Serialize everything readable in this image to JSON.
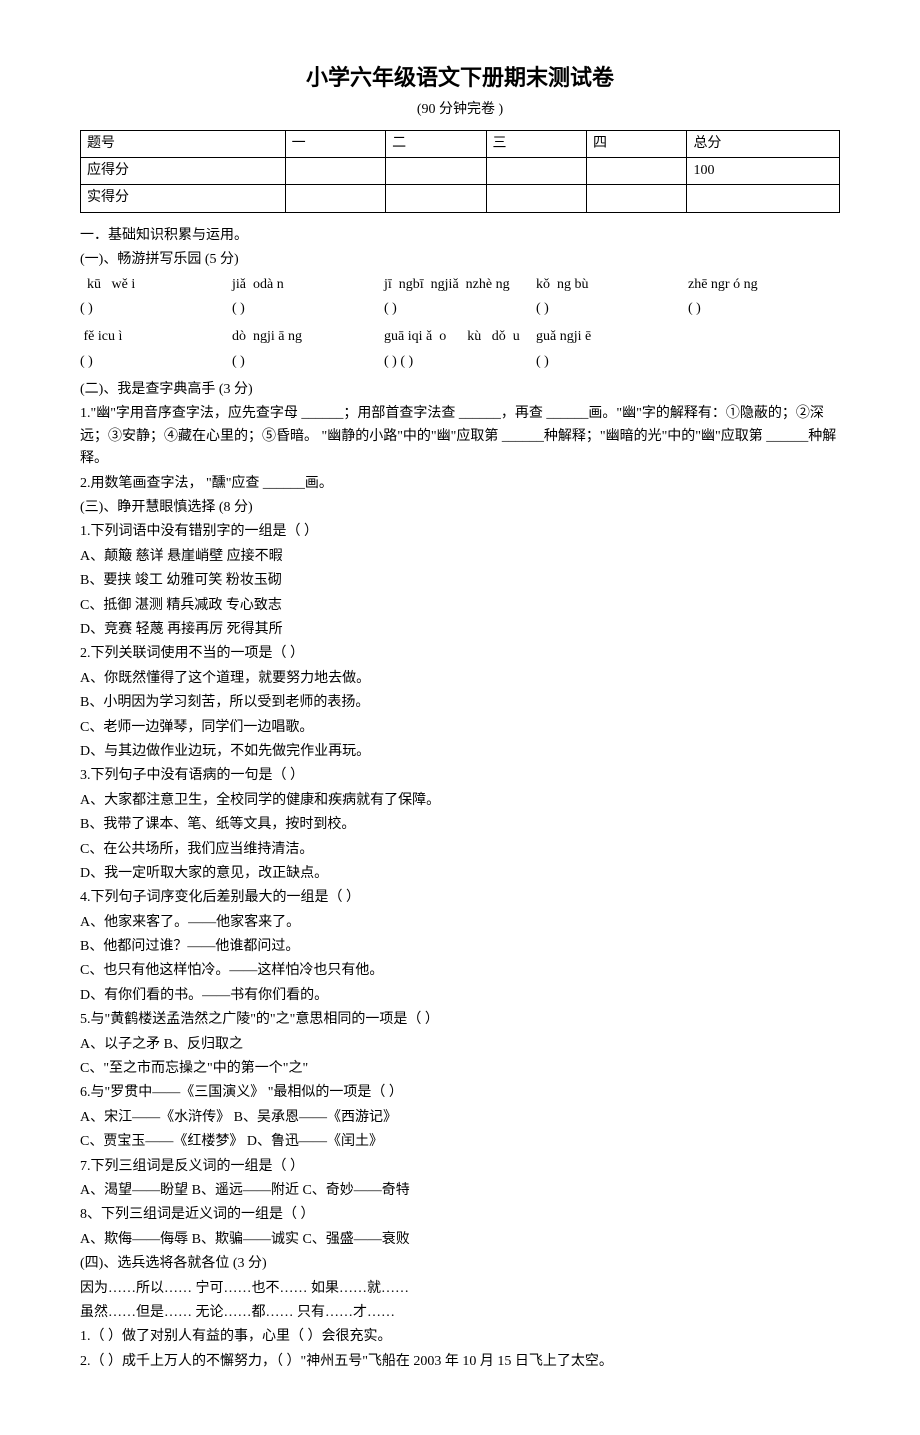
{
  "title": "小学六年级语文下册期末测试卷",
  "subtitle": "(90 分钟完卷  )",
  "table": {
    "headers": [
      "题号",
      "一",
      "二",
      "三",
      "四",
      "总分"
    ],
    "row2": [
      "应得分",
      "",
      "",
      "",
      "",
      "100"
    ],
    "row3": [
      "实得分",
      "",
      "",
      "",
      "",
      ""
    ]
  },
  "s1": {
    "heading": "一．基础知识积累与运用。",
    "sub1": {
      "title": "(一)、畅游拼写乐园   (5 分)",
      "pinyin1": [
        "  kū   wě i",
        "jiǎ  odà n",
        "jī  ngbī  ngjiǎ  nzhè ng",
        "kǒ  ng bù",
        "zhē ngr ó ng"
      ],
      "blank1": [
        "(            )",
        "(            )",
        "(                    )",
        "(          )",
        "(              )"
      ],
      "pinyin2": [
        " fě icu ì",
        "dò  ngji ā ng",
        "guā iqi ǎ  o      kù   dǒ  u",
        "guǎ ngji ē",
        ""
      ],
      "blank2": [
        "(            )",
        "(            )",
        "(            )    (         )",
        "(            )",
        ""
      ]
    },
    "sub2": {
      "title": "(二)、我是查字典高手    (3 分)",
      "q1": "1.\"幽\"字用音序查字法，应先查字母       ______；用部首查字法查    ______，再查  ______画。\"幽\"字的解释有：①隐蔽的；②深远；③安静；④藏在心里的；⑤昏暗。      \"幽静的小路\"中的\"幽\"应取第 ______种解释；\"幽暗的光\"中的\"幽\"应取第    ______种解释。",
      "q2": "2.用数笔画查字法，   \"醺\"应查   ______画。"
    },
    "sub3": {
      "title": "(三)、睁开慧眼慎选择    (8 分)",
      "q1": "1.下列词语中没有错别字的一组是（           ）",
      "q1a": "A、颠簸    慈详    悬崖峭壁      应接不暇",
      "q1b": "B、要挟    竣工     幼雅可笑     粉妆玉砌",
      "q1c": "C、抵御    湛测    精兵减政     专心致志",
      "q1d": "D、竞赛    轻蔑    再接再厉     死得其所",
      "q2": "2.下列关联词使用不当的一项是（            ）",
      "q2a": "A、你既然懂得了这个道理，就要努力地去做。",
      "q2b": "B、小明因为学习刻苦，所以受到老师的表扬。",
      "q2c": "C、老师一边弹琴，同学们一边唱歌。",
      "q2d": "D、与其边做作业边玩，不如先做完作业再玩。",
      "q3": "3.下列句子中没有语病的一句是（           ）",
      "q3a": "A、大家都注意卫生，全校同学的健康和疾病就有了保障。",
      "q3b": "B、我带了课本、笔、纸等文具，按时到校。",
      "q3c": "C、在公共场所，我们应当维持清洁。",
      "q3d": "D、我一定听取大家的意见，改正缺点。",
      "q4": "4.下列句子词序变化后差别最大的一组是（              ）",
      "q4a": "A、他家来客了。——他家客来了。",
      "q4b": "B、他都问过谁？——他谁都问过。",
      "q4c": "C、也只有他这样怕冷。——这样怕冷也只有他。",
      "q4d": "D、有你们看的书。——书有你们看的。",
      "q5": "5.与\"黄鹤楼送孟浩然之广陵\"的\"之\"意思相同的一项是（               ）",
      "q5a": "A、以子之矛                    B、反归取之",
      "q5c": "C、\"至之市而忘操之\"中的第一个\"之\"",
      "q6": "6.与\"罗贯中——《三国演义》    \"最相似的一项是（          ）",
      "q6a": "A、宋江——《水浒传》           B、吴承恩——《西游记》",
      "q6c": " C、贾宝玉——《红楼梦》         D、鲁迅——《闰土》",
      "q7": "7.下列三组词是反义词的一组是（            ）",
      "q7a": "A、渴望——盼望      B、遥远——附近       C、奇妙——奇特",
      "q8": "8、下列三组词是近义词的一组是（            ）",
      "q8a": "A、欺侮——侮辱       B、欺骗——诚实         C、强盛——衰败"
    },
    "sub4": {
      "title": "(四)、选兵选将各就各位    (3 分)",
      "line1": "因为……所以……       宁可……也不……       如果……就……",
      "line2": "虽然……但是……        无论……都……       只有……才……",
      "q1": "1.（      ）做了对别人有益的事，心里（          ）会很充实。",
      "q2": "2.（      ）成千上万人的不懈努力，（         ）\"神州五号\"飞船在    2003 年 10 月 15 日飞上了太空。"
    }
  }
}
